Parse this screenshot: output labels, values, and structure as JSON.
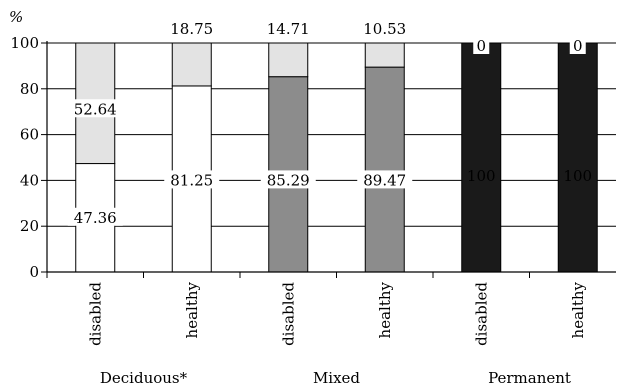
{
  "chart_data": {
    "type": "bar",
    "stacked": true,
    "ylabel": "%",
    "ylim": [
      0,
      100
    ],
    "yticks": [
      0,
      20,
      40,
      60,
      80,
      100
    ],
    "grid": true,
    "categories": [
      "disabled",
      "healthy",
      "disabled",
      "healthy",
      "disabled",
      "healthy"
    ],
    "groups": [
      {
        "label": "Deciduous*",
        "categories": [
          0,
          1
        ]
      },
      {
        "label": "Mixed",
        "categories": [
          2,
          3
        ]
      },
      {
        "label": "Permanent",
        "categories": [
          4,
          5
        ]
      }
    ],
    "series": [
      {
        "values": [
          47.36,
          81.25,
          85.29,
          89.47,
          100,
          100
        ],
        "labels": [
          "47.36",
          "81.25",
          "85.29",
          "89.47",
          "100",
          "100"
        ]
      },
      {
        "values": [
          52.64,
          18.75,
          14.71,
          10.53,
          0,
          0
        ],
        "labels": [
          "52.64",
          "18.75",
          "14.71",
          "10.53",
          "0",
          "0"
        ]
      }
    ],
    "bar_colors": [
      [
        "#ffffff",
        "#ffffff",
        "#8c8c8c",
        "#8c8c8c",
        "#1a1a1a",
        "#1a1a1a"
      ],
      [
        "#e3e3e3",
        "#e3e3e3",
        "#e3e3e3",
        "#e3e3e3",
        "#e3e3e3",
        "#e3e3e3"
      ]
    ]
  }
}
